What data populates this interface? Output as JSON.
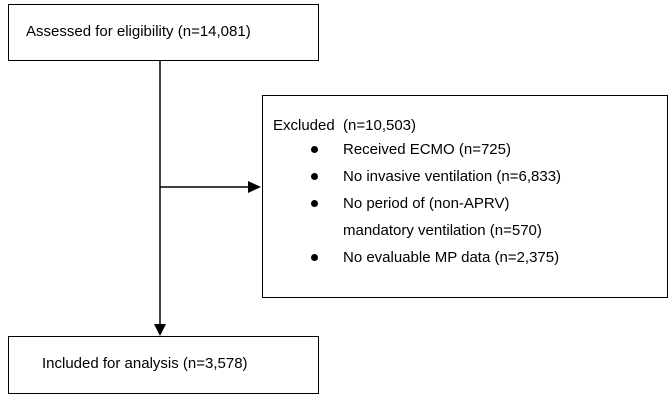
{
  "nodes": [
    {
      "label": "Assessed for eligibility (n=14,081)"
    },
    {
      "label": "Excluded  (n=10,503)",
      "items": [
        "Received ECMO (n=725)",
        "No invasive ventilation (n=6,833)",
        "No period of (non-APRV) mandatory ventilation (n=570)",
        "No evaluable MP data (n=2,375)"
      ]
    },
    {
      "label": "Included for analysis (n=3,578)"
    }
  ]
}
